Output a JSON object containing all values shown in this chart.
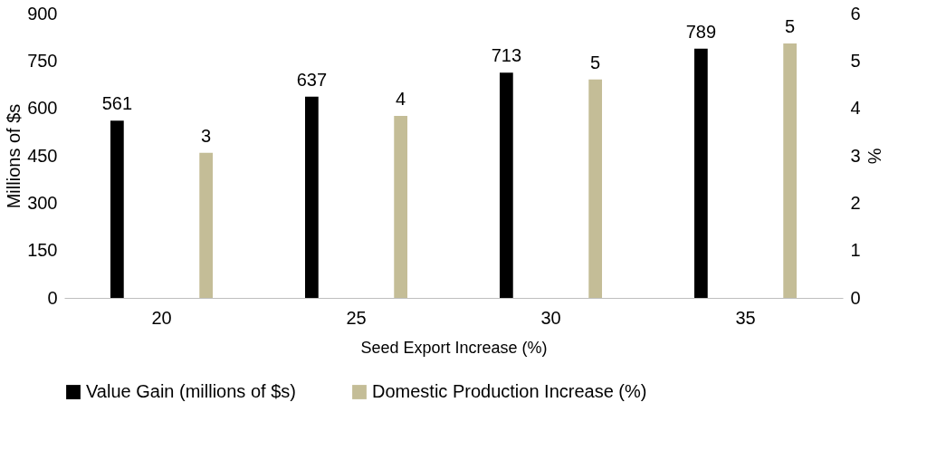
{
  "chart_data": {
    "type": "bar",
    "xlabel": "Seed Export Increase (%)",
    "ylabel": "Millions of $s",
    "y2label": "%",
    "categories": [
      "20",
      "25",
      "30",
      "35"
    ],
    "series": [
      {
        "name": "Value Gain (millions of $s)",
        "color": "#000000",
        "values": [
          561,
          637,
          713,
          789
        ],
        "value_labels": [
          "561",
          "637",
          "713",
          "789"
        ]
      },
      {
        "name": "Domestic Production Increase (%)",
        "color": "#c4bd97",
        "values": [
          3.06,
          3.84,
          4.61,
          5.37
        ],
        "value_labels": [
          "3",
          "4",
          "5",
          "5"
        ],
        "axis": "y2"
      }
    ],
    "ylim": [
      0,
      900
    ],
    "yticks": [
      0,
      150,
      300,
      450,
      600,
      750,
      900
    ],
    "y2lim": [
      0,
      6
    ],
    "y2ticks": [
      0,
      1,
      2,
      3,
      4,
      5,
      6
    ],
    "grid": false,
    "legend": "bottom"
  }
}
